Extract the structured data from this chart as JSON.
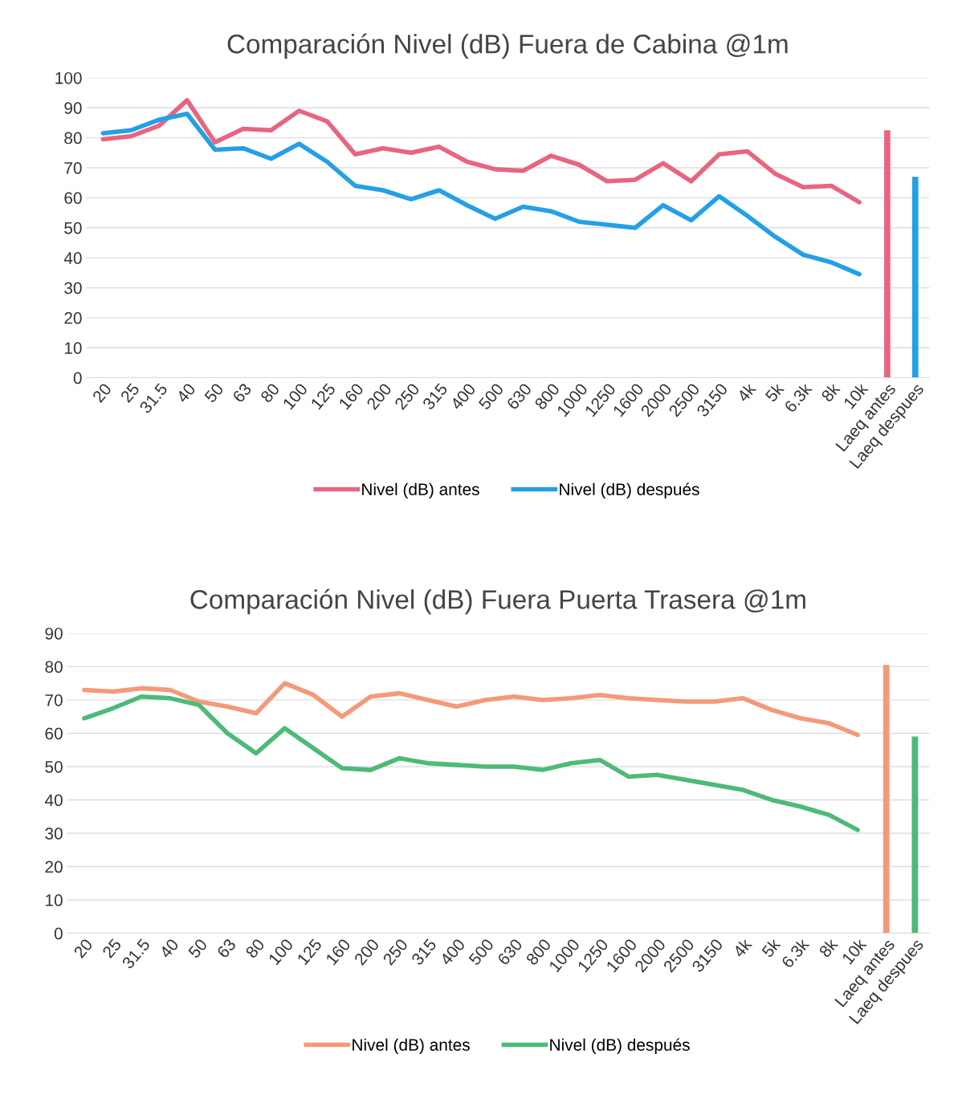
{
  "chart_data": [
    {
      "type": "line",
      "title": "Comparación Nivel (dB) Fuera de Cabina @1m",
      "categories": [
        "20",
        "25",
        "31.5",
        "40",
        "50",
        "63",
        "80",
        "100",
        "125",
        "160",
        "200",
        "250",
        "315",
        "400",
        "500",
        "630",
        "800",
        "1000",
        "1250",
        "1600",
        "2000",
        "2500",
        "3150",
        "4k",
        "5k",
        "6.3k",
        "8k",
        "10k",
        "Laeq antes",
        "Laeq despues"
      ],
      "series": [
        {
          "name": "Nivel (dB) antes",
          "color": "#e8657f",
          "values": [
            79.5,
            80.5,
            84,
            92.5,
            78.5,
            83,
            82.5,
            89,
            85.5,
            74.5,
            76.5,
            75,
            77,
            72,
            69.5,
            69,
            74,
            71,
            65.5,
            66,
            71.5,
            65.5,
            74.5,
            75.5,
            68,
            63.5,
            64,
            58.5,
            null,
            null
          ]
        },
        {
          "name": "Nivel (dB) después",
          "color": "#23a0e6",
          "values": [
            81.5,
            82.5,
            86,
            88,
            76,
            76.5,
            73,
            78,
            72,
            64,
            62.5,
            59.5,
            62.5,
            57.5,
            53,
            57,
            55.5,
            52,
            51,
            50,
            57.5,
            52.5,
            60.5,
            54,
            47,
            41,
            38.5,
            34.5,
            null,
            null
          ]
        },
        {
          "type": "bar",
          "color": "#e8657f",
          "values": [
            null,
            null,
            null,
            null,
            null,
            null,
            null,
            null,
            null,
            null,
            null,
            null,
            null,
            null,
            null,
            null,
            null,
            null,
            null,
            null,
            null,
            null,
            null,
            null,
            null,
            null,
            null,
            null,
            82.5,
            null
          ]
        },
        {
          "type": "bar",
          "color": "#23a0e6",
          "values": [
            null,
            null,
            null,
            null,
            null,
            null,
            null,
            null,
            null,
            null,
            null,
            null,
            null,
            null,
            null,
            null,
            null,
            null,
            null,
            null,
            null,
            null,
            null,
            null,
            null,
            null,
            null,
            null,
            null,
            67
          ]
        }
      ],
      "ylim": [
        0,
        100
      ],
      "yticks": [
        0,
        10,
        20,
        30,
        40,
        50,
        60,
        70,
        80,
        90,
        100
      ],
      "grid": "y",
      "legend": "bottom",
      "marker": "none",
      "line_style": "solid"
    },
    {
      "type": "line",
      "title": "Comparación Nivel (dB) Fuera Puerta Trasera @1m",
      "categories": [
        "20",
        "25",
        "31.5",
        "40",
        "50",
        "63",
        "80",
        "100",
        "125",
        "160",
        "200",
        "250",
        "315",
        "400",
        "500",
        "630",
        "800",
        "1000",
        "1250",
        "1600",
        "2000",
        "2500",
        "3150",
        "4k",
        "5k",
        "6.3k",
        "8k",
        "10k",
        "Laeq antes",
        "Laeq despues"
      ],
      "series": [
        {
          "name": "Nivel (dB) antes",
          "color": "#f39a78",
          "values": [
            73,
            72.5,
            73.5,
            73,
            69.5,
            68,
            66,
            75,
            71.5,
            65,
            71,
            72,
            70,
            68,
            70,
            71,
            70,
            70.5,
            71.5,
            70.5,
            70,
            69.5,
            69.5,
            70.5,
            67,
            64.5,
            63,
            59.5,
            null,
            null
          ]
        },
        {
          "name": "Nivel (dB) después",
          "color": "#4dba78",
          "values": [
            64.5,
            67.5,
            71,
            70.5,
            68.5,
            60,
            54,
            61.5,
            55.5,
            49.5,
            49,
            52.5,
            51,
            50.5,
            50,
            50,
            49,
            51,
            52,
            47,
            47.5,
            46,
            44.5,
            43,
            40,
            38,
            35.5,
            31,
            null,
            null
          ]
        },
        {
          "type": "bar",
          "color": "#f39a78",
          "values": [
            null,
            null,
            null,
            null,
            null,
            null,
            null,
            null,
            null,
            null,
            null,
            null,
            null,
            null,
            null,
            null,
            null,
            null,
            null,
            null,
            null,
            null,
            null,
            null,
            null,
            null,
            null,
            null,
            80.5,
            null
          ]
        },
        {
          "type": "bar",
          "color": "#4dba78",
          "values": [
            null,
            null,
            null,
            null,
            null,
            null,
            null,
            null,
            null,
            null,
            null,
            null,
            null,
            null,
            null,
            null,
            null,
            null,
            null,
            null,
            null,
            null,
            null,
            null,
            null,
            null,
            null,
            null,
            null,
            59
          ]
        }
      ],
      "ylim": [
        0,
        90
      ],
      "yticks": [
        0,
        10,
        20,
        30,
        40,
        50,
        60,
        70,
        80,
        90
      ],
      "grid": "y",
      "legend": "bottom",
      "marker": "none",
      "line_style": "solid"
    }
  ]
}
